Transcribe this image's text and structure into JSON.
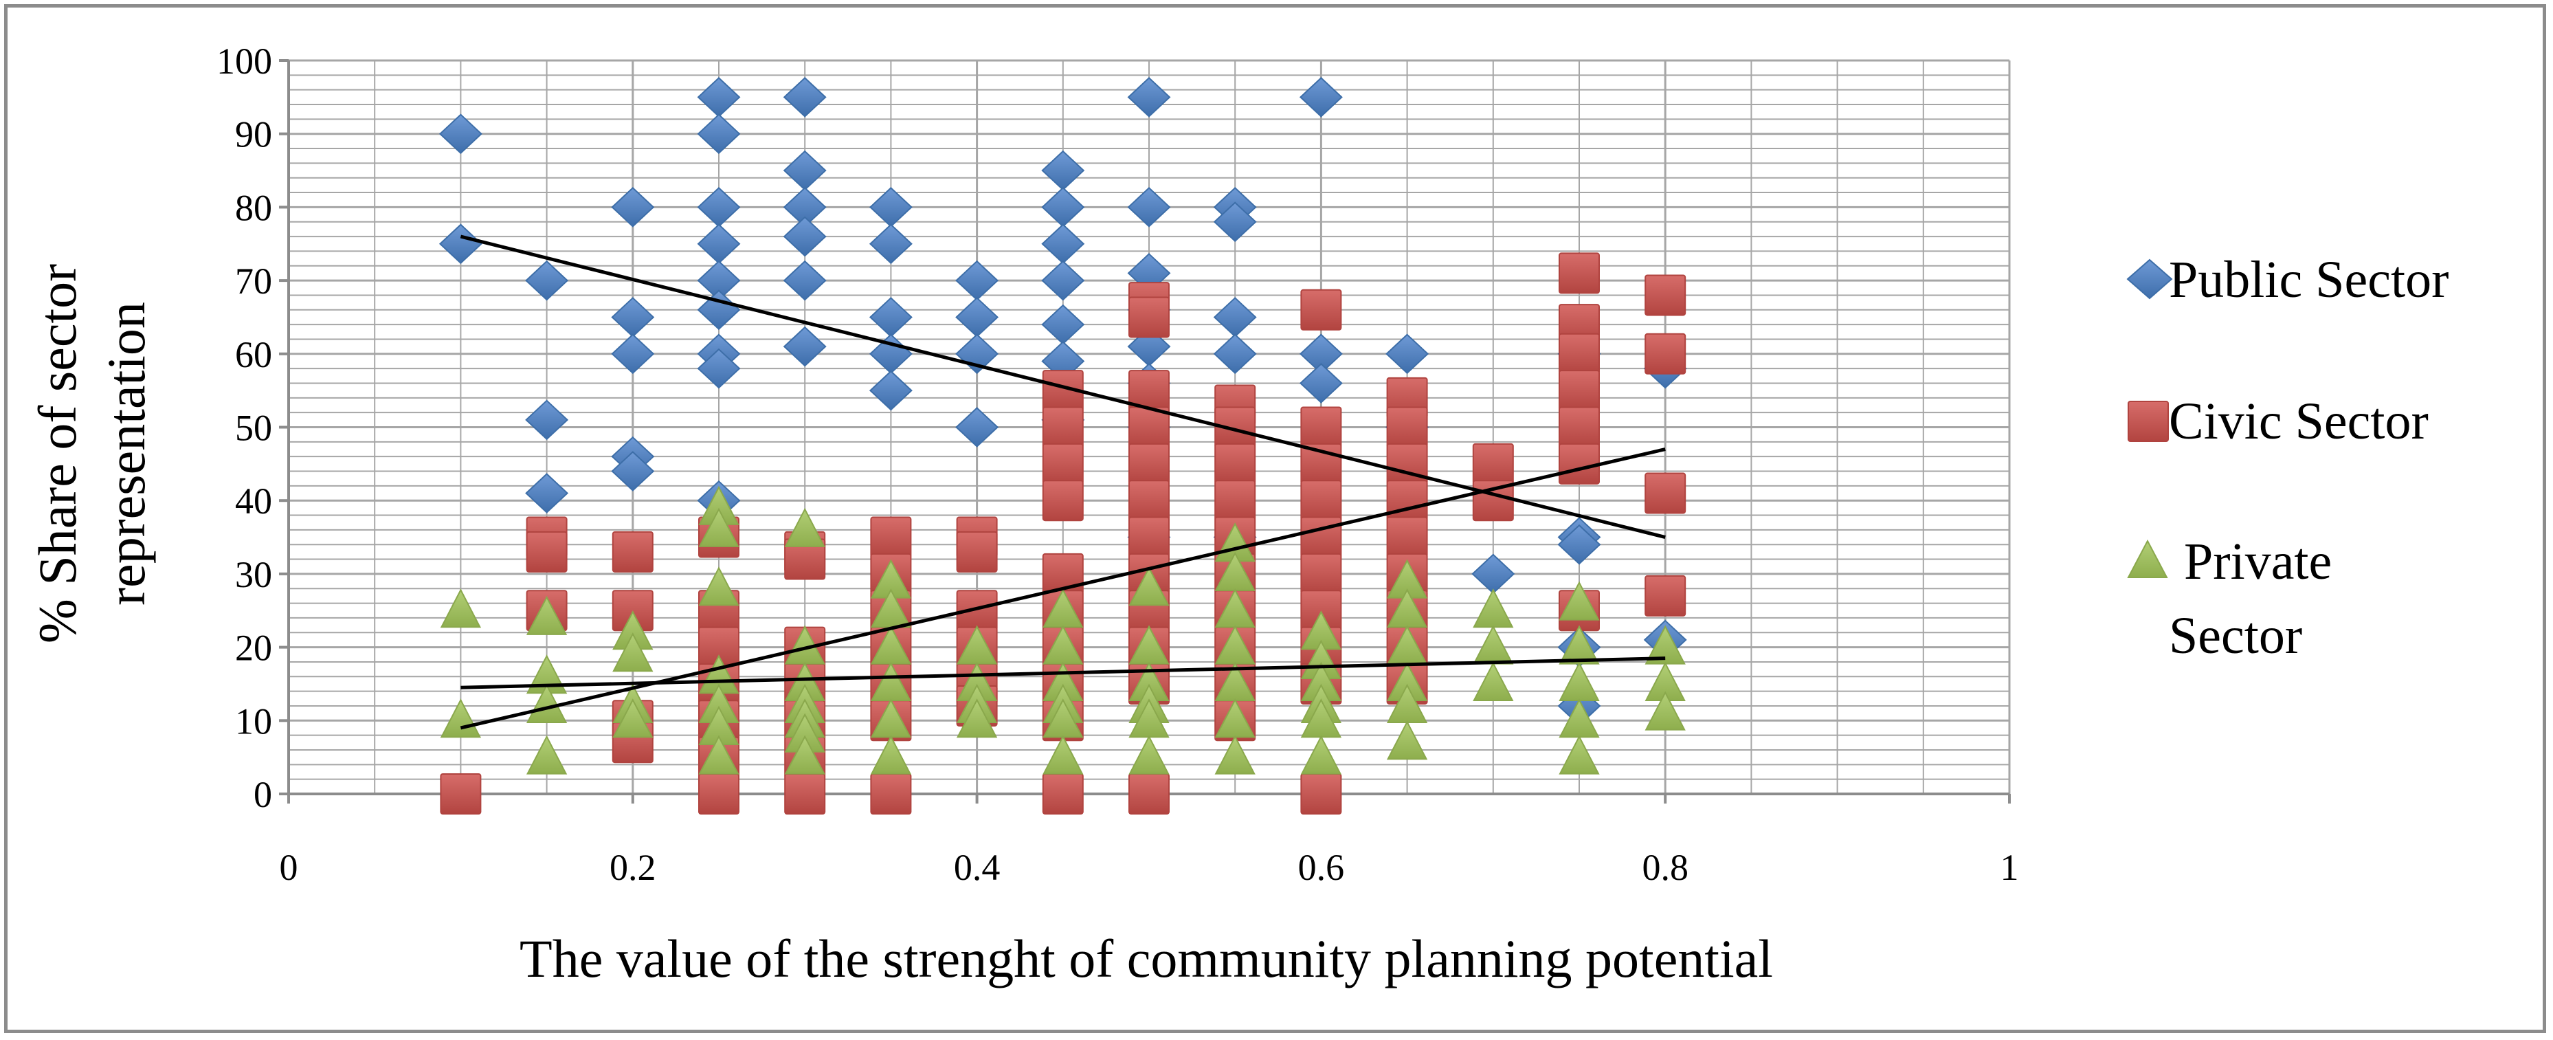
{
  "chart_data": {
    "type": "scatter",
    "xlabel": "The value of the strenght of community planning potential",
    "ylabel": [
      "% Share of sector",
      "representation"
    ],
    "xlim": [
      0,
      1
    ],
    "ylim": [
      0,
      100
    ],
    "x_ticks": [
      "0",
      "0.2",
      "0.4",
      "0.6",
      "0.8",
      "1"
    ],
    "y_ticks": [
      "0",
      "10",
      "20",
      "30",
      "40",
      "50",
      "60",
      "70",
      "80",
      "90",
      "100"
    ],
    "grid": true,
    "legend_position": "right",
    "series": [
      {
        "name": "Public Sector",
        "marker": "diamond",
        "color": "#4a7ebb",
        "points": [
          [
            0.1,
            90
          ],
          [
            0.1,
            75
          ],
          [
            0.15,
            70
          ],
          [
            0.15,
            51
          ],
          [
            0.15,
            41
          ],
          [
            0.2,
            80
          ],
          [
            0.2,
            65
          ],
          [
            0.2,
            60
          ],
          [
            0.2,
            46
          ],
          [
            0.2,
            44
          ],
          [
            0.25,
            95
          ],
          [
            0.25,
            90
          ],
          [
            0.25,
            80
          ],
          [
            0.25,
            75
          ],
          [
            0.25,
            70
          ],
          [
            0.25,
            66
          ],
          [
            0.25,
            60
          ],
          [
            0.25,
            58
          ],
          [
            0.25,
            40
          ],
          [
            0.3,
            95
          ],
          [
            0.3,
            85
          ],
          [
            0.3,
            80
          ],
          [
            0.3,
            76
          ],
          [
            0.3,
            70
          ],
          [
            0.3,
            61
          ],
          [
            0.35,
            80
          ],
          [
            0.35,
            75
          ],
          [
            0.35,
            65
          ],
          [
            0.35,
            60
          ],
          [
            0.35,
            55
          ],
          [
            0.4,
            70
          ],
          [
            0.4,
            65
          ],
          [
            0.4,
            60
          ],
          [
            0.4,
            50
          ],
          [
            0.45,
            85
          ],
          [
            0.45,
            80
          ],
          [
            0.45,
            75
          ],
          [
            0.45,
            70
          ],
          [
            0.45,
            64
          ],
          [
            0.45,
            59
          ],
          [
            0.45,
            51
          ],
          [
            0.5,
            95
          ],
          [
            0.5,
            80
          ],
          [
            0.5,
            71
          ],
          [
            0.5,
            66
          ],
          [
            0.5,
            61
          ],
          [
            0.5,
            56
          ],
          [
            0.5,
            50
          ],
          [
            0.5,
            35
          ],
          [
            0.55,
            80
          ],
          [
            0.55,
            78
          ],
          [
            0.55,
            65
          ],
          [
            0.55,
            60
          ],
          [
            0.55,
            35
          ],
          [
            0.6,
            95
          ],
          [
            0.6,
            60
          ],
          [
            0.6,
            56
          ],
          [
            0.65,
            60
          ],
          [
            0.65,
            50
          ],
          [
            0.7,
            30
          ],
          [
            0.75,
            60
          ],
          [
            0.75,
            35
          ],
          [
            0.75,
            34
          ],
          [
            0.75,
            20
          ],
          [
            0.75,
            12
          ],
          [
            0.8,
            58
          ],
          [
            0.8,
            21
          ]
        ]
      },
      {
        "name": "Civic Sector",
        "marker": "square",
        "color": "#c0504d",
        "points": [
          [
            0.1,
            0
          ],
          [
            0.15,
            35
          ],
          [
            0.15,
            33
          ],
          [
            0.15,
            25
          ],
          [
            0.2,
            33
          ],
          [
            0.2,
            25
          ],
          [
            0.2,
            10
          ],
          [
            0.2,
            7
          ],
          [
            0.25,
            35
          ],
          [
            0.25,
            25
          ],
          [
            0.25,
            20
          ],
          [
            0.25,
            15
          ],
          [
            0.25,
            10
          ],
          [
            0.25,
            5
          ],
          [
            0.25,
            0
          ],
          [
            0.3,
            33
          ],
          [
            0.3,
            32
          ],
          [
            0.3,
            20
          ],
          [
            0.3,
            15
          ],
          [
            0.3,
            10
          ],
          [
            0.3,
            5
          ],
          [
            0.3,
            0
          ],
          [
            0.35,
            35
          ],
          [
            0.35,
            30
          ],
          [
            0.35,
            25
          ],
          [
            0.35,
            20
          ],
          [
            0.35,
            15
          ],
          [
            0.35,
            10
          ],
          [
            0.35,
            0
          ],
          [
            0.4,
            35
          ],
          [
            0.4,
            33
          ],
          [
            0.4,
            25
          ],
          [
            0.4,
            20
          ],
          [
            0.4,
            15
          ],
          [
            0.4,
            12
          ],
          [
            0.45,
            55
          ],
          [
            0.45,
            50
          ],
          [
            0.45,
            45
          ],
          [
            0.45,
            40
          ],
          [
            0.45,
            30
          ],
          [
            0.45,
            25
          ],
          [
            0.45,
            20
          ],
          [
            0.45,
            15
          ],
          [
            0.45,
            10
          ],
          [
            0.45,
            0
          ],
          [
            0.5,
            67
          ],
          [
            0.5,
            65
          ],
          [
            0.5,
            55
          ],
          [
            0.5,
            50
          ],
          [
            0.5,
            45
          ],
          [
            0.5,
            40
          ],
          [
            0.5,
            35
          ],
          [
            0.5,
            30
          ],
          [
            0.5,
            25
          ],
          [
            0.5,
            20
          ],
          [
            0.5,
            15
          ],
          [
            0.5,
            0
          ],
          [
            0.55,
            53
          ],
          [
            0.55,
            50
          ],
          [
            0.55,
            45
          ],
          [
            0.55,
            40
          ],
          [
            0.55,
            35
          ],
          [
            0.55,
            30
          ],
          [
            0.55,
            25
          ],
          [
            0.55,
            20
          ],
          [
            0.55,
            15
          ],
          [
            0.55,
            10
          ],
          [
            0.6,
            66
          ],
          [
            0.6,
            50
          ],
          [
            0.6,
            45
          ],
          [
            0.6,
            40
          ],
          [
            0.6,
            35
          ],
          [
            0.6,
            30
          ],
          [
            0.6,
            25
          ],
          [
            0.6,
            20
          ],
          [
            0.6,
            15
          ],
          [
            0.6,
            0
          ],
          [
            0.65,
            54
          ],
          [
            0.65,
            50
          ],
          [
            0.65,
            45
          ],
          [
            0.65,
            40
          ],
          [
            0.65,
            35
          ],
          [
            0.65,
            30
          ],
          [
            0.65,
            25
          ],
          [
            0.65,
            20
          ],
          [
            0.65,
            15
          ],
          [
            0.7,
            45
          ],
          [
            0.7,
            40
          ],
          [
            0.75,
            71
          ],
          [
            0.75,
            64
          ],
          [
            0.75,
            60
          ],
          [
            0.75,
            55
          ],
          [
            0.75,
            50
          ],
          [
            0.75,
            45
          ],
          [
            0.75,
            25
          ],
          [
            0.8,
            68
          ],
          [
            0.8,
            60
          ],
          [
            0.8,
            41
          ],
          [
            0.8,
            27
          ]
        ]
      },
      {
        "name": "Private Sector",
        "marker": "triangle",
        "color": "#9bbb59",
        "points": [
          [
            0.1,
            25
          ],
          [
            0.1,
            10
          ],
          [
            0.15,
            24
          ],
          [
            0.15,
            16
          ],
          [
            0.15,
            12
          ],
          [
            0.15,
            5
          ],
          [
            0.2,
            22
          ],
          [
            0.2,
            19
          ],
          [
            0.2,
            12
          ],
          [
            0.2,
            10
          ],
          [
            0.25,
            39
          ],
          [
            0.25,
            36
          ],
          [
            0.25,
            28
          ],
          [
            0.25,
            16
          ],
          [
            0.25,
            12
          ],
          [
            0.25,
            9
          ],
          [
            0.25,
            5
          ],
          [
            0.3,
            36
          ],
          [
            0.3,
            20
          ],
          [
            0.3,
            15
          ],
          [
            0.3,
            12
          ],
          [
            0.3,
            10
          ],
          [
            0.3,
            8
          ],
          [
            0.3,
            5
          ],
          [
            0.35,
            29
          ],
          [
            0.35,
            25
          ],
          [
            0.35,
            20
          ],
          [
            0.35,
            15
          ],
          [
            0.35,
            10
          ],
          [
            0.35,
            5
          ],
          [
            0.4,
            20
          ],
          [
            0.4,
            15
          ],
          [
            0.4,
            12
          ],
          [
            0.4,
            10
          ],
          [
            0.45,
            25
          ],
          [
            0.45,
            20
          ],
          [
            0.45,
            15
          ],
          [
            0.45,
            12
          ],
          [
            0.45,
            10
          ],
          [
            0.45,
            5
          ],
          [
            0.5,
            28
          ],
          [
            0.5,
            20
          ],
          [
            0.5,
            15
          ],
          [
            0.5,
            12
          ],
          [
            0.5,
            10
          ],
          [
            0.5,
            5
          ],
          [
            0.55,
            34
          ],
          [
            0.55,
            30
          ],
          [
            0.55,
            25
          ],
          [
            0.55,
            20
          ],
          [
            0.55,
            15
          ],
          [
            0.55,
            10
          ],
          [
            0.55,
            5
          ],
          [
            0.6,
            22
          ],
          [
            0.6,
            18
          ],
          [
            0.6,
            15
          ],
          [
            0.6,
            12
          ],
          [
            0.6,
            10
          ],
          [
            0.6,
            5
          ],
          [
            0.65,
            29
          ],
          [
            0.65,
            25
          ],
          [
            0.65,
            20
          ],
          [
            0.65,
            15
          ],
          [
            0.65,
            12
          ],
          [
            0.65,
            7
          ],
          [
            0.7,
            25
          ],
          [
            0.7,
            20
          ],
          [
            0.7,
            15
          ],
          [
            0.75,
            26
          ],
          [
            0.75,
            20
          ],
          [
            0.75,
            15
          ],
          [
            0.75,
            10
          ],
          [
            0.75,
            5
          ],
          [
            0.8,
            20
          ],
          [
            0.8,
            15
          ],
          [
            0.8,
            11
          ]
        ]
      }
    ],
    "trendlines": [
      {
        "series": "Public Sector",
        "x": [
          0.1,
          0.8
        ],
        "y": [
          76,
          35
        ]
      },
      {
        "series": "Civic Sector",
        "x": [
          0.1,
          0.8
        ],
        "y": [
          9,
          47
        ]
      },
      {
        "series": "Private Sector",
        "x": [
          0.1,
          0.8
        ],
        "y": [
          14.5,
          18.5
        ]
      }
    ],
    "colors": {
      "grid": "#a6a6a6",
      "axis": "#8c8c8c",
      "trendline": "#000000"
    }
  }
}
